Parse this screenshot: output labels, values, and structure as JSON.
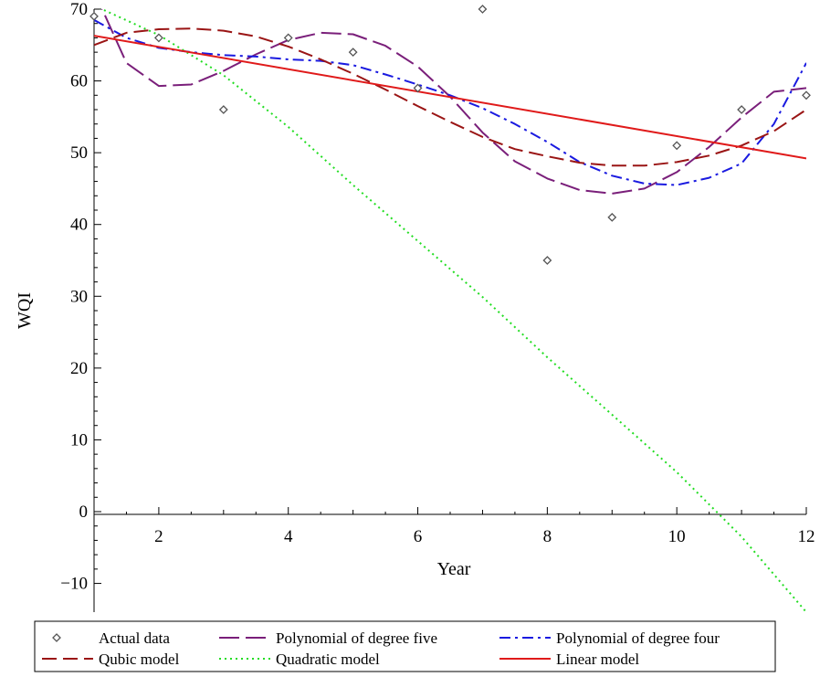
{
  "chart_data": {
    "type": "line",
    "xlabel": "Year",
    "ylabel": "WQI",
    "xlim": [
      1,
      12
    ],
    "ylim": [
      -14,
      70
    ],
    "x_ticks": [
      2,
      4,
      6,
      8,
      10,
      12
    ],
    "y_ticks": [
      -10,
      0,
      10,
      20,
      30,
      40,
      50,
      60,
      70
    ],
    "grid": false,
    "legend_position": "bottom",
    "actual_data": {
      "name": "Actual data",
      "color": "#555555",
      "marker": "diamond",
      "x": [
        1,
        2,
        3,
        4,
        5,
        6,
        7,
        8,
        9,
        10,
        11,
        12
      ],
      "y": [
        69,
        66,
        56,
        66,
        64,
        59,
        70,
        35,
        41,
        51,
        56,
        58
      ]
    },
    "series": [
      {
        "name": "Polynomial of degree five",
        "color": "#7a1f7a",
        "dash": "long-dash",
        "x": [
          1,
          1.5,
          2,
          2.5,
          3,
          3.5,
          4,
          4.5,
          5,
          5.5,
          6,
          6.5,
          7,
          7.5,
          8,
          8.5,
          9,
          9.5,
          10,
          10.5,
          11,
          11.5,
          12
        ],
        "y": [
          72.5,
          62.5,
          59.3,
          59.5,
          61.4,
          63.7,
          65.7,
          66.7,
          66.5,
          64.9,
          62.0,
          57.8,
          52.8,
          48.8,
          46.4,
          44.8,
          44.3,
          45.0,
          47.3,
          50.8,
          54.9,
          58.5,
          59.0
        ]
      },
      {
        "name": "Polynomial of degree four",
        "color": "#1a1ae0",
        "dash": "dash-dot",
        "x": [
          1,
          1.5,
          2,
          2.5,
          3,
          3.5,
          4,
          4.5,
          5,
          5.5,
          6,
          6.5,
          7,
          7.5,
          8,
          8.5,
          9,
          9.5,
          10,
          10.5,
          11,
          11.5,
          12
        ],
        "y": [
          68.5,
          66.0,
          64.6,
          64.0,
          63.6,
          63.4,
          63.0,
          62.8,
          62.2,
          60.9,
          59.5,
          58.0,
          56.2,
          54.0,
          51.5,
          48.7,
          46.8,
          45.7,
          45.5,
          46.5,
          48.5,
          54.0,
          62.5
        ]
      },
      {
        "name": "Qubic model",
        "color": "#9a1515",
        "dash": "dash",
        "x": [
          1,
          1.5,
          2,
          2.5,
          3,
          3.5,
          4,
          4.5,
          5,
          5.5,
          6,
          6.5,
          7,
          7.5,
          8,
          8.5,
          9,
          9.5,
          10,
          10.5,
          11,
          11.5,
          12
        ],
        "y": [
          65.0,
          66.7,
          67.2,
          67.3,
          67.0,
          66.2,
          64.8,
          63.0,
          61.0,
          58.8,
          56.5,
          54.3,
          52.2,
          50.5,
          49.5,
          48.6,
          48.2,
          48.2,
          48.7,
          49.6,
          51.0,
          53.0,
          56.0
        ]
      },
      {
        "name": "Quadratic model",
        "color": "#22dd22",
        "dash": "dot",
        "x": [
          1,
          2,
          3,
          4,
          5,
          6,
          7,
          8,
          9,
          10,
          11,
          12
        ],
        "y": [
          70.5,
          66.4,
          60.8,
          53.6,
          45.5,
          37.7,
          29.9,
          21.5,
          13.5,
          5.5,
          -3.5,
          -14.0
        ]
      },
      {
        "name": "Linear model",
        "color": "#e01a1a",
        "dash": "solid",
        "x": [
          1,
          12
        ],
        "y": [
          66.3,
          49.2
        ]
      }
    ]
  }
}
